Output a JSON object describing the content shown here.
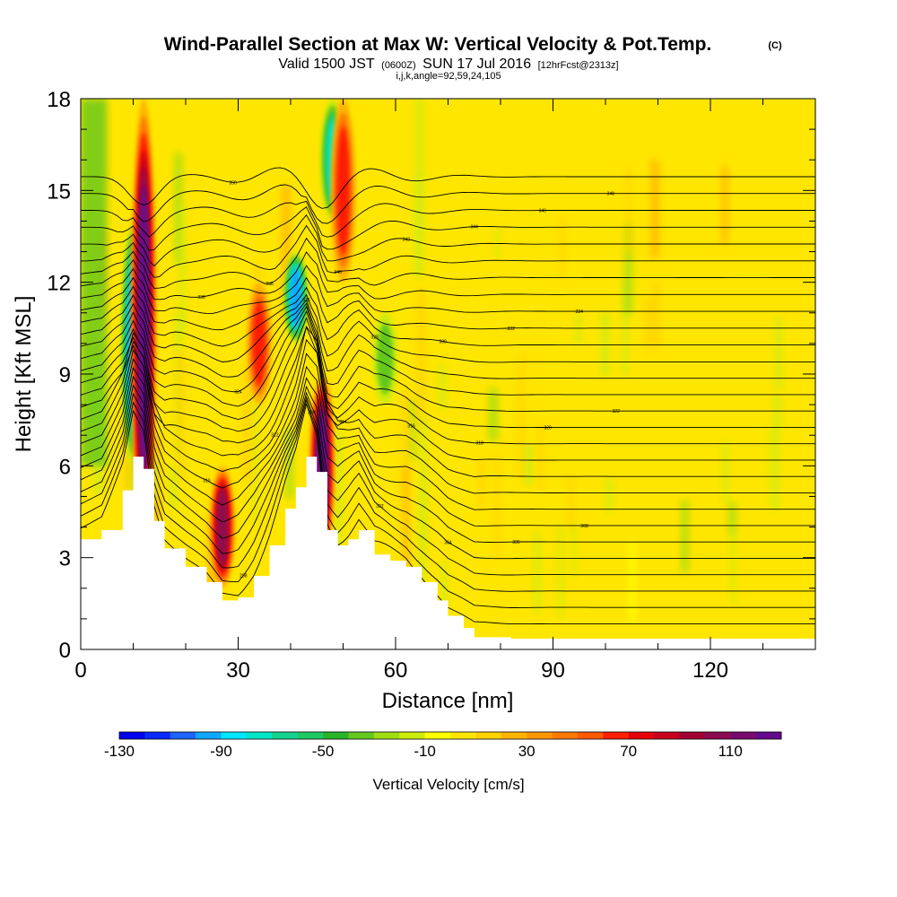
{
  "title": {
    "main": "Wind-Parallel Section at Max W: Vertical Velocity & Pot.Temp.",
    "copyright": "(C)",
    "valid_prefix": "Valid 1500 JST",
    "valid_utc": "(0600Z)",
    "valid_date": "SUN 17 Jul 2016",
    "forecast": "[12hrFcst@2313z]",
    "indices": "i,j,k,angle=92,59,24,105"
  },
  "chart_data": {
    "type": "heatmap",
    "title": "Wind-Parallel Section at Max W: Vertical Velocity & Pot.Temp.",
    "xlabel": "Distance [nm]",
    "ylabel": "Height [Kft MSL]",
    "xlim": [
      0,
      140
    ],
    "ylim": [
      0,
      18
    ],
    "x_ticks": [
      0,
      30,
      60,
      90,
      120
    ],
    "x_tick_labels": [
      "0",
      "30",
      "60",
      "90",
      "120"
    ],
    "y_ticks": [
      0,
      3,
      6,
      9,
      12,
      15,
      18
    ],
    "y_tick_labels": [
      "0",
      "3",
      "6",
      "9",
      "12",
      "15",
      "18"
    ],
    "colorbar": {
      "label": "Vertical Velocity [cm/s]",
      "min": -130,
      "max": 130,
      "step": 10,
      "tick_labels": [
        "-130",
        "-90",
        "-50",
        "-10",
        "30",
        "70",
        "110"
      ],
      "colors": [
        "#0000ee",
        "#0a28ff",
        "#1e64ff",
        "#10a8ff",
        "#00e6ff",
        "#00e6c8",
        "#14d28c",
        "#1ec864",
        "#28b428",
        "#64c81e",
        "#a0dc14",
        "#cdeb0a",
        "#ffff00",
        "#ffe600",
        "#ffd200",
        "#ffb400",
        "#ff9600",
        "#ff7800",
        "#ff5a00",
        "#ff1e00",
        "#e6000a",
        "#c8001e",
        "#a00032",
        "#8c0a50",
        "#780a6e",
        "#640a8c"
      ]
    },
    "terrain_kft": [
      [
        0,
        3.6
      ],
      [
        4,
        3.9
      ],
      [
        8,
        5.2
      ],
      [
        10,
        6.3
      ],
      [
        12,
        5.9
      ],
      [
        14,
        4.2
      ],
      [
        16,
        3.3
      ],
      [
        20,
        2.7
      ],
      [
        24,
        2.2
      ],
      [
        27,
        1.6
      ],
      [
        30,
        1.7
      ],
      [
        33,
        2.4
      ],
      [
        36,
        3.4
      ],
      [
        39,
        4.6
      ],
      [
        41,
        5.3
      ],
      [
        43,
        6.3
      ],
      [
        45,
        5.8
      ],
      [
        47,
        3.9
      ],
      [
        49,
        3.4
      ],
      [
        51,
        3.6
      ],
      [
        53,
        3.9
      ],
      [
        56,
        3.1
      ],
      [
        59,
        2.9
      ],
      [
        62,
        2.7
      ],
      [
        65,
        2.2
      ],
      [
        68,
        1.6
      ],
      [
        70,
        1.1
      ],
      [
        73,
        0.7
      ],
      [
        75,
        0.4
      ],
      [
        82,
        0.35
      ],
      [
        100,
        0.35
      ],
      [
        120,
        0.35
      ],
      [
        140,
        0.35
      ]
    ],
    "updrafts": [
      {
        "x": 12,
        "z_min": 3,
        "z_max": 18,
        "w": 120
      },
      {
        "x": 27,
        "z_min": 2,
        "z_max": 6,
        "w": 110
      },
      {
        "x": 34,
        "z_min": 8,
        "z_max": 12,
        "w": 70
      },
      {
        "x": 46,
        "z_min": 3,
        "z_max": 9,
        "w": 120
      },
      {
        "x": 50,
        "z_min": 12,
        "z_max": 18,
        "w": 70
      }
    ],
    "downdrafts": [
      {
        "x": 10,
        "z_min": 6,
        "z_max": 14,
        "w": -100
      },
      {
        "x": 41,
        "z_min": 10,
        "z_max": 13,
        "w": -110
      },
      {
        "x": 48,
        "z_min": 14,
        "z_max": 18,
        "w": -90
      },
      {
        "x": 58,
        "z_min": 8,
        "z_max": 11,
        "w": -40
      }
    ],
    "isentropes": {
      "base_kft": [
        6.5,
        5.5,
        4.2,
        3.8,
        3.0,
        2.2,
        1.4,
        0.6
      ],
      "spacing_kft": 0.55,
      "labels": [
        "296",
        "298",
        "300",
        "302",
        "304",
        "306",
        "308",
        "310",
        "312",
        "314",
        "316",
        "318",
        "320",
        "322",
        "324",
        "326",
        "328",
        "330",
        "332",
        "334",
        "336",
        "338",
        "340",
        "342",
        "344",
        "346",
        "348",
        "350"
      ]
    }
  }
}
